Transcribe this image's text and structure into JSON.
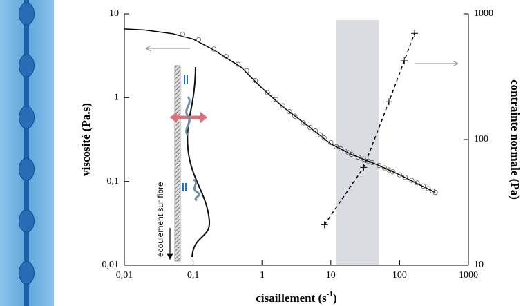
{
  "chart_data": {
    "type": "line",
    "xlabel": [
      "cisaillement (s",
      "-1",
      ")"
    ],
    "ylabel": "viscosité (Pa.s)",
    "y2label": "contrainte normale (Pa)",
    "xlog": true,
    "ylog": true,
    "y2log": true,
    "xlim": [
      0.01,
      1000
    ],
    "ylim": [
      0.01,
      10
    ],
    "y2lim": [
      10,
      1000
    ],
    "xticks": [
      {
        "value": 0.01,
        "label": "0,01"
      },
      {
        "value": 0.1,
        "label": "0,1"
      },
      1,
      10,
      100,
      1000
    ],
    "yticks": [
      {
        "value": 0.01,
        "label": "0,01"
      },
      {
        "value": 0.1,
        "label": "0,1"
      },
      1,
      10
    ],
    "y2ticks": [
      10,
      100,
      1000
    ],
    "shaded_xrange": [
      12,
      50
    ],
    "series": [
      {
        "color": "#000000",
        "line": "solid",
        "marker": "none",
        "x": [
          0.01,
          0.02,
          0.05,
          0.1,
          0.2,
          0.5,
          1,
          2,
          5,
          10,
          20,
          50,
          100,
          200,
          330
        ],
        "values": [
          6.6,
          6.4,
          5.8,
          5.0,
          3.7,
          2.3,
          1.3,
          0.78,
          0.44,
          0.28,
          0.21,
          0.155,
          0.12,
          0.09,
          0.074
        ]
      },
      {
        "color": "#555555",
        "line": "none",
        "marker": "circle",
        "x": [
          0.07,
          0.12,
          0.2,
          0.3,
          0.45,
          0.6,
          0.8,
          1.2,
          1.6,
          2,
          2.5,
          3,
          4,
          5,
          6,
          7,
          8,
          10,
          12,
          14,
          16,
          18,
          20,
          25,
          30,
          35,
          40,
          50,
          60,
          70,
          80,
          100,
          120,
          150,
          180,
          220,
          260,
          300,
          330
        ],
        "values": [
          5.7,
          4.9,
          3.8,
          3.1,
          2.5,
          2.1,
          1.6,
          1.15,
          0.95,
          0.8,
          0.68,
          0.6,
          0.5,
          0.44,
          0.4,
          0.36,
          0.33,
          0.29,
          0.26,
          0.245,
          0.23,
          0.22,
          0.21,
          0.195,
          0.185,
          0.175,
          0.168,
          0.155,
          0.145,
          0.137,
          0.13,
          0.12,
          0.112,
          0.103,
          0.096,
          0.088,
          0.082,
          0.077,
          0.074
        ]
      },
      {
        "axis": "y2",
        "color": "#000000",
        "line": "dashed",
        "marker": "plus",
        "x": [
          8.1,
          30,
          70,
          117,
          165
        ],
        "values": [
          21,
          60,
          200,
          423,
          700
        ]
      }
    ],
    "annotations": [
      "écoulement sur fibre"
    ]
  }
}
